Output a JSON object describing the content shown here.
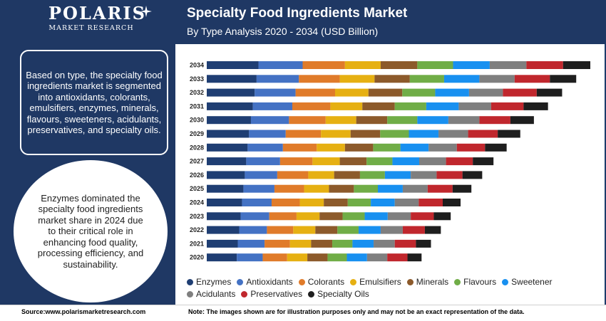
{
  "brand": {
    "name": "POLARIS",
    "sub": "MARKET RESEARCH"
  },
  "header": {
    "title": "Specialty Food Ingredients Market",
    "subtitle": "By Type Analysis 2020 - 2034 (USD Billion)"
  },
  "sidebar": {
    "segment_text": "Based on type, the specialty food ingredients market is segmented into antioxidants, colorants, emulsifiers, enzymes, minerals, flavours, sweeteners, acidulants, preservatives, and specialty oils.",
    "highlight_text": "Enzymes dominated the specialty food ingredients market share in 2024 due to their critical role in enhancing food quality, processing efficiency, and sustainability."
  },
  "footer": {
    "source": "Source:www.polarismarketresearch.com",
    "note": "Note: The images shown are for illustration purposes only and may not be an exact representation of the data."
  },
  "chart_data": {
    "type": "bar",
    "orientation": "horizontal",
    "stacked": true,
    "title": "Specialty Food Ingredients Market",
    "subtitle": "By Type Analysis 2020 - 2034 (USD Billion)",
    "categories": [
      "2034",
      "2033",
      "2032",
      "2031",
      "2030",
      "2029",
      "2028",
      "2027",
      "2026",
      "2025",
      "2024",
      "2023",
      "2022",
      "2021",
      "2020"
    ],
    "legend_position": "bottom",
    "grid": false,
    "series": [
      {
        "name": "Enzymes",
        "color": "#1f3e73",
        "values": [
          11.0,
          10.6,
          10.2,
          9.8,
          9.4,
          9.0,
          8.7,
          8.4,
          8.1,
          7.8,
          7.5,
          7.2,
          6.9,
          6.6,
          6.4
        ]
      },
      {
        "name": "Antioxidants",
        "color": "#4472c4",
        "values": [
          9.4,
          9.0,
          8.7,
          8.4,
          8.1,
          7.8,
          7.5,
          7.2,
          6.9,
          6.6,
          6.3,
          6.1,
          5.9,
          5.7,
          5.5
        ]
      },
      {
        "name": "Colorants",
        "color": "#e07b2a",
        "values": [
          9.0,
          8.7,
          8.4,
          8.1,
          7.8,
          7.5,
          7.2,
          6.9,
          6.6,
          6.3,
          6.0,
          5.8,
          5.6,
          5.4,
          5.2
        ]
      },
      {
        "name": "Emulsifiers",
        "color": "#e6b012",
        "values": [
          7.6,
          7.4,
          7.1,
          6.8,
          6.5,
          6.3,
          6.0,
          5.8,
          5.5,
          5.3,
          5.1,
          4.9,
          4.7,
          4.5,
          4.3
        ]
      },
      {
        "name": "Minerals",
        "color": "#8c5a2b",
        "values": [
          7.8,
          7.5,
          7.2,
          6.9,
          6.6,
          6.3,
          6.0,
          5.7,
          5.5,
          5.3,
          5.1,
          4.9,
          4.7,
          4.5,
          4.3
        ]
      },
      {
        "name": "Flavours",
        "color": "#70ad47",
        "values": [
          7.6,
          7.3,
          7.0,
          6.7,
          6.4,
          6.1,
          5.8,
          5.5,
          5.3,
          5.1,
          4.9,
          4.7,
          4.5,
          4.3,
          4.1
        ]
      },
      {
        "name": "Sweetener",
        "color": "#1890f0",
        "values": [
          7.8,
          7.5,
          7.2,
          6.9,
          6.6,
          6.3,
          6.0,
          5.7,
          5.5,
          5.3,
          5.1,
          4.9,
          4.7,
          4.5,
          4.3
        ]
      },
      {
        "name": "Acidulants",
        "color": "#7f7f7f",
        "values": [
          7.8,
          7.5,
          7.2,
          6.9,
          6.6,
          6.3,
          6.0,
          5.7,
          5.5,
          5.3,
          5.1,
          4.9,
          4.7,
          4.5,
          4.3
        ]
      },
      {
        "name": "Preservatives",
        "color": "#c0272d",
        "values": [
          7.8,
          7.5,
          7.2,
          6.9,
          6.6,
          6.3,
          6.0,
          5.7,
          5.5,
          5.3,
          5.1,
          4.9,
          4.7,
          4.5,
          4.3
        ]
      },
      {
        "name": "Specialty Oils",
        "color": "#1e1e1e",
        "values": [
          5.8,
          5.6,
          5.4,
          5.2,
          5.0,
          4.8,
          4.6,
          4.4,
          4.2,
          4.0,
          3.8,
          3.6,
          3.4,
          3.2,
          3.0
        ]
      }
    ]
  }
}
